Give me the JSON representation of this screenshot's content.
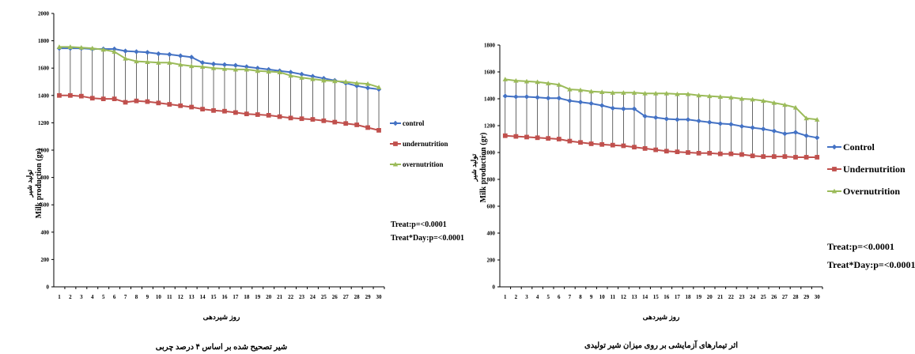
{
  "chart_data": [
    {
      "type": "line",
      "title": "شیر تصحیح شده بر اساس ۴ درصد چربی",
      "xlabel": "روز شیردهی",
      "ylabel_fa": "تولید شیر",
      "ylabel_en": "Milk production (gr)",
      "ylim": [
        0,
        2000
      ],
      "ytick_step": 200,
      "x": [
        1,
        2,
        3,
        4,
        5,
        6,
        7,
        8,
        9,
        10,
        11,
        12,
        13,
        14,
        15,
        16,
        17,
        18,
        19,
        20,
        21,
        22,
        23,
        24,
        25,
        26,
        27,
        28,
        29,
        30
      ],
      "legend_position": "right",
      "series": [
        {
          "name": "control",
          "color": "#4472c4",
          "marker": "diamond",
          "values": [
            1745,
            1745,
            1745,
            1740,
            1740,
            1740,
            1725,
            1720,
            1715,
            1705,
            1700,
            1690,
            1680,
            1640,
            1630,
            1625,
            1620,
            1610,
            1600,
            1590,
            1580,
            1570,
            1555,
            1540,
            1525,
            1510,
            1490,
            1470,
            1455,
            1445
          ]
        },
        {
          "name": "undernutrition",
          "color": "#c0504d",
          "marker": "square",
          "values": [
            1400,
            1400,
            1395,
            1380,
            1375,
            1375,
            1350,
            1360,
            1355,
            1345,
            1335,
            1325,
            1315,
            1300,
            1290,
            1285,
            1275,
            1265,
            1260,
            1255,
            1245,
            1235,
            1230,
            1225,
            1215,
            1205,
            1195,
            1185,
            1165,
            1145
          ]
        },
        {
          "name": "overnutrition",
          "color": "#9bbb59",
          "marker": "triangle",
          "values": [
            1755,
            1755,
            1750,
            1745,
            1735,
            1720,
            1670,
            1650,
            1645,
            1640,
            1640,
            1625,
            1615,
            1610,
            1600,
            1595,
            1590,
            1590,
            1580,
            1575,
            1570,
            1545,
            1530,
            1520,
            1510,
            1505,
            1500,
            1490,
            1485,
            1460
          ]
        }
      ],
      "annotations": [
        "Treat:p=<0.0001",
        "Treat*Day:p=<0.0001"
      ]
    },
    {
      "type": "line",
      "title": "اثر تیمارهای آزمایشی بر روی میزان شیر تولیدی",
      "xlabel": "روز شیردهی",
      "ylabel_fa": "تولید شیر",
      "ylabel_en": "Milk production (gr)",
      "ylim": [
        0,
        1800
      ],
      "ytick_step": 200,
      "x": [
        1,
        2,
        3,
        4,
        5,
        6,
        7,
        8,
        9,
        10,
        11,
        12,
        13,
        14,
        15,
        16,
        17,
        18,
        19,
        20,
        21,
        22,
        23,
        24,
        25,
        26,
        27,
        28,
        29,
        30
      ],
      "legend_position": "right",
      "series": [
        {
          "name": "Control",
          "color": "#4472c4",
          "marker": "diamond",
          "values": [
            1420,
            1415,
            1415,
            1410,
            1405,
            1405,
            1385,
            1375,
            1365,
            1350,
            1330,
            1325,
            1325,
            1270,
            1260,
            1250,
            1245,
            1245,
            1235,
            1225,
            1215,
            1210,
            1195,
            1185,
            1175,
            1160,
            1140,
            1150,
            1125,
            1110
          ]
        },
        {
          "name": "Undernutrition",
          "color": "#c0504d",
          "marker": "square",
          "values": [
            1125,
            1120,
            1115,
            1110,
            1105,
            1100,
            1085,
            1075,
            1065,
            1060,
            1055,
            1050,
            1040,
            1030,
            1020,
            1010,
            1005,
            1000,
            995,
            995,
            990,
            990,
            985,
            975,
            970,
            970,
            970,
            965,
            965,
            965
          ]
        },
        {
          "name": "Overnutrition",
          "color": "#9bbb59",
          "marker": "triangle",
          "values": [
            1545,
            1535,
            1530,
            1525,
            1515,
            1505,
            1470,
            1465,
            1455,
            1450,
            1445,
            1445,
            1445,
            1440,
            1440,
            1440,
            1435,
            1435,
            1425,
            1420,
            1415,
            1410,
            1400,
            1395,
            1385,
            1370,
            1355,
            1335,
            1255,
            1245
          ]
        }
      ],
      "annotations": [
        "Treat:p=<0.0001",
        "Treat*Day:p=<0.0001"
      ]
    }
  ]
}
